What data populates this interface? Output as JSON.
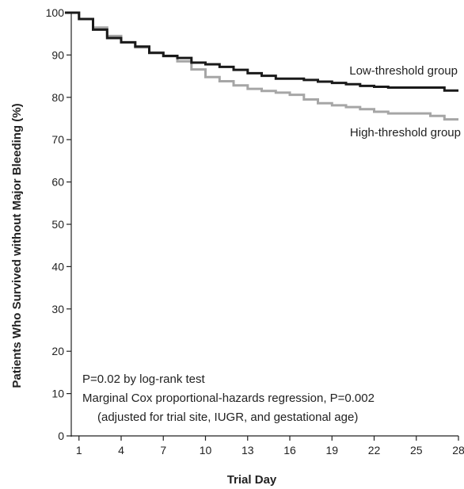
{
  "chart_data": {
    "type": "line",
    "step": true,
    "xlabel": "Trial Day",
    "ylabel": "Patients Who Survived without Major Bleeding (%)",
    "xlim": [
      0,
      28
    ],
    "ylim": [
      0,
      100
    ],
    "x_ticks": [
      1,
      4,
      7,
      10,
      13,
      16,
      19,
      22,
      25,
      28
    ],
    "y_ticks": [
      0,
      10,
      20,
      30,
      40,
      50,
      60,
      70,
      80,
      90,
      100
    ],
    "grid": false,
    "series": [
      {
        "name": "Low-threshold group",
        "color": "#1a1a1a",
        "points": [
          [
            0,
            100
          ],
          [
            1,
            100
          ],
          [
            1,
            98.5
          ],
          [
            2,
            98.5
          ],
          [
            2,
            96
          ],
          [
            3,
            96
          ],
          [
            3,
            94
          ],
          [
            4,
            94
          ],
          [
            4,
            93
          ],
          [
            5,
            93
          ],
          [
            5,
            92
          ],
          [
            6,
            92
          ],
          [
            6,
            90.5
          ],
          [
            7,
            90.5
          ],
          [
            7,
            89.8
          ],
          [
            8,
            89.8
          ],
          [
            8,
            89.3
          ],
          [
            9,
            89.3
          ],
          [
            9,
            88.2
          ],
          [
            10,
            88.2
          ],
          [
            10,
            87.8
          ],
          [
            11,
            87.8
          ],
          [
            11,
            87.2
          ],
          [
            12,
            87.2
          ],
          [
            12,
            86.5
          ],
          [
            13,
            86.5
          ],
          [
            13,
            85.7
          ],
          [
            14,
            85.7
          ],
          [
            14,
            85.1
          ],
          [
            15,
            85.1
          ],
          [
            15,
            84.4
          ],
          [
            17,
            84.4
          ],
          [
            17,
            84.1
          ],
          [
            18,
            84.1
          ],
          [
            18,
            83.7
          ],
          [
            19,
            83.7
          ],
          [
            19,
            83.4
          ],
          [
            20,
            83.4
          ],
          [
            20,
            83.1
          ],
          [
            21,
            83.1
          ],
          [
            21,
            82.7
          ],
          [
            22,
            82.7
          ],
          [
            22,
            82.5
          ],
          [
            23,
            82.5
          ],
          [
            23,
            82.3
          ],
          [
            27,
            82.3
          ],
          [
            27,
            81.6
          ],
          [
            28,
            81.6
          ]
        ]
      },
      {
        "name": "High-threshold group",
        "color": "#a6a6a6",
        "points": [
          [
            0,
            100
          ],
          [
            1,
            100
          ],
          [
            1,
            98.5
          ],
          [
            2,
            98.5
          ],
          [
            2,
            96.5
          ],
          [
            3,
            96.5
          ],
          [
            3,
            94.5
          ],
          [
            4,
            94.5
          ],
          [
            4,
            93
          ],
          [
            5,
            93
          ],
          [
            5,
            91.8
          ],
          [
            6,
            91.8
          ],
          [
            6,
            90.6
          ],
          [
            7,
            90.6
          ],
          [
            7,
            89.7
          ],
          [
            8,
            89.7
          ],
          [
            8,
            88.5
          ],
          [
            9,
            88.5
          ],
          [
            9,
            86.6
          ],
          [
            10,
            86.6
          ],
          [
            10,
            84.8
          ],
          [
            11,
            84.8
          ],
          [
            11,
            83.8
          ],
          [
            12,
            83.8
          ],
          [
            12,
            82.8
          ],
          [
            13,
            82.8
          ],
          [
            13,
            82
          ],
          [
            14,
            82
          ],
          [
            14,
            81.5
          ],
          [
            15,
            81.5
          ],
          [
            15,
            81.1
          ],
          [
            16,
            81.1
          ],
          [
            16,
            80.6
          ],
          [
            17,
            80.6
          ],
          [
            17,
            79.5
          ],
          [
            18,
            79.5
          ],
          [
            18,
            78.6
          ],
          [
            19,
            78.6
          ],
          [
            19,
            78.1
          ],
          [
            20,
            78.1
          ],
          [
            20,
            77.7
          ],
          [
            21,
            77.7
          ],
          [
            21,
            77.2
          ],
          [
            22,
            77.2
          ],
          [
            22,
            76.6
          ],
          [
            23,
            76.6
          ],
          [
            23,
            76.2
          ],
          [
            26,
            76.2
          ],
          [
            26,
            75.6
          ],
          [
            27,
            75.6
          ],
          [
            27,
            74.8
          ],
          [
            28,
            74.8
          ]
        ]
      }
    ],
    "annotations": [
      "P=0.02 by log-rank test",
      "Marginal Cox proportional-hazards regression, P=0.002",
      "(adjusted for trial site, IUGR, and gestational age)"
    ]
  }
}
